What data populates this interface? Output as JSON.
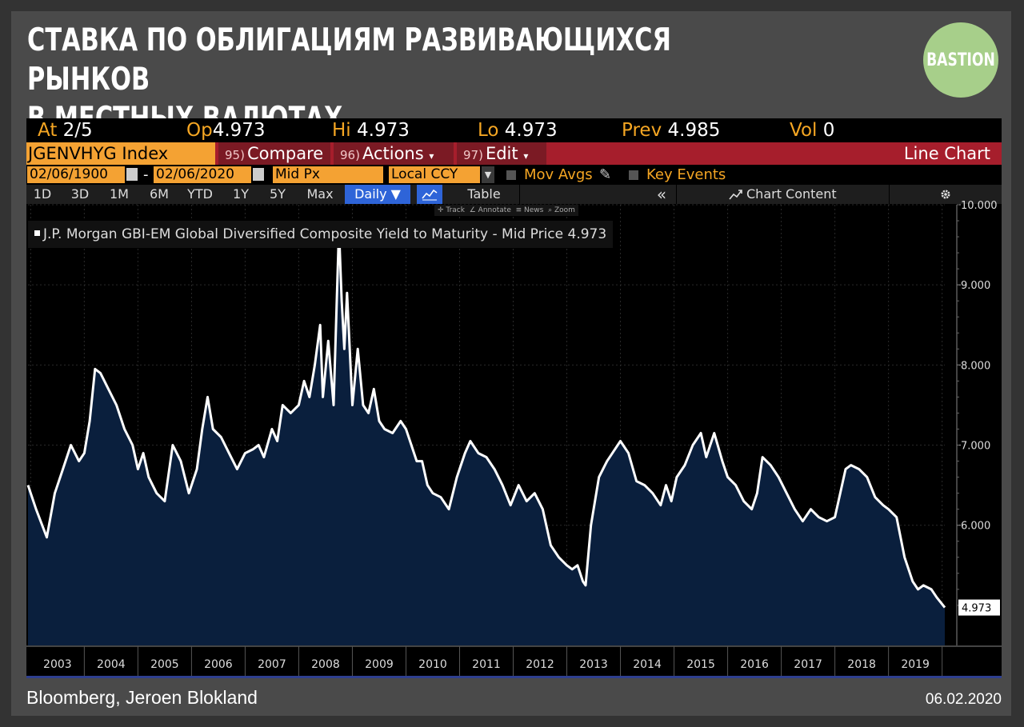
{
  "header": {
    "title_line1": "СТАВКА ПО ОБЛИГАЦИЯМ РАЗВИВАЮЩИХСЯ РЫНКОВ",
    "title_line2": "В МЕСТНЫХ ВАЛЮТАХ",
    "logo_text": "BASTION"
  },
  "quote": {
    "at_label": "At",
    "at_value": "2/5",
    "op_label": "Op",
    "op_value": "4.973",
    "hi_label": "Hi",
    "hi_value": "4.973",
    "lo_label": "Lo",
    "lo_value": "4.973",
    "prev_label": "Prev",
    "prev_value": "4.985",
    "vol_label": "Vol",
    "vol_value": "0"
  },
  "command_bar": {
    "ticker": "JGENVHYG Index",
    "compare_num": "95)",
    "compare_label": "Compare",
    "actions_num": "96)",
    "actions_label": "Actions",
    "edit_num": "97)",
    "edit_label": "Edit",
    "chart_mode": "Line Chart"
  },
  "settings": {
    "start_date": "02/06/1900",
    "end_date": "02/06/2020",
    "dash": "-",
    "price_field": "Mid Px",
    "currency": "Local CCY",
    "mov_avgs": "Mov Avgs",
    "key_events": "Key Events"
  },
  "tabs": {
    "periods": [
      "1D",
      "3D",
      "1M",
      "6M",
      "YTD",
      "1Y",
      "5Y",
      "Max"
    ],
    "frequency": "Daily ▼",
    "table": "Table",
    "collapse": "«",
    "chart_content": "Chart Content"
  },
  "tools": {
    "track": "Track",
    "annotate": "Annotate",
    "news": "News",
    "zoom": "Zoom"
  },
  "footer": {
    "source": "Bloomberg, Jeroen Blokland",
    "date": "06.02.2020"
  },
  "colors": {
    "background": "#333333",
    "panel": "#4a4a4a",
    "terminal": "#000000",
    "amber": "#f5a623",
    "command_red": "#a61e2c",
    "area_fill": "#0a1f3d",
    "line": "#ffffff",
    "logo": "#a7cf8a"
  },
  "chart_data": {
    "type": "area",
    "series": [
      {
        "name": "J.P. Morgan GBI-EM Global Diversified Composite Yield to Maturity - Mid Price",
        "last_value": "4.973",
        "points": [
          [
            2002.95,
            6.5
          ],
          [
            2003.1,
            6.2
          ],
          [
            2003.3,
            5.85
          ],
          [
            2003.45,
            6.4
          ],
          [
            2003.6,
            6.7
          ],
          [
            2003.75,
            7.0
          ],
          [
            2003.9,
            6.8
          ],
          [
            2004.0,
            6.9
          ],
          [
            2004.1,
            7.3
          ],
          [
            2004.2,
            7.95
          ],
          [
            2004.3,
            7.9
          ],
          [
            2004.45,
            7.7
          ],
          [
            2004.6,
            7.5
          ],
          [
            2004.75,
            7.2
          ],
          [
            2004.9,
            7.0
          ],
          [
            2005.0,
            6.7
          ],
          [
            2005.1,
            6.9
          ],
          [
            2005.2,
            6.6
          ],
          [
            2005.35,
            6.4
          ],
          [
            2005.5,
            6.3
          ],
          [
            2005.65,
            7.0
          ],
          [
            2005.8,
            6.8
          ],
          [
            2005.95,
            6.4
          ],
          [
            2006.1,
            6.7
          ],
          [
            2006.2,
            7.2
          ],
          [
            2006.3,
            7.6
          ],
          [
            2006.4,
            7.2
          ],
          [
            2006.55,
            7.1
          ],
          [
            2006.7,
            6.9
          ],
          [
            2006.85,
            6.7
          ],
          [
            2007.0,
            6.9
          ],
          [
            2007.15,
            6.95
          ],
          [
            2007.25,
            7.0
          ],
          [
            2007.35,
            6.85
          ],
          [
            2007.5,
            7.2
          ],
          [
            2007.6,
            7.05
          ],
          [
            2007.7,
            7.5
          ],
          [
            2007.85,
            7.4
          ],
          [
            2008.0,
            7.5
          ],
          [
            2008.1,
            7.8
          ],
          [
            2008.2,
            7.6
          ],
          [
            2008.3,
            8.0
          ],
          [
            2008.4,
            8.5
          ],
          [
            2008.45,
            7.6
          ],
          [
            2008.55,
            8.3
          ],
          [
            2008.65,
            7.5
          ],
          [
            2008.75,
            9.7
          ],
          [
            2008.8,
            8.8
          ],
          [
            2008.85,
            8.2
          ],
          [
            2008.9,
            8.9
          ],
          [
            2009.0,
            7.5
          ],
          [
            2009.1,
            8.2
          ],
          [
            2009.2,
            7.5
          ],
          [
            2009.3,
            7.4
          ],
          [
            2009.4,
            7.7
          ],
          [
            2009.5,
            7.3
          ],
          [
            2009.6,
            7.2
          ],
          [
            2009.75,
            7.15
          ],
          [
            2009.9,
            7.3
          ],
          [
            2010.0,
            7.2
          ],
          [
            2010.1,
            7.0
          ],
          [
            2010.2,
            6.8
          ],
          [
            2010.3,
            6.8
          ],
          [
            2010.4,
            6.5
          ],
          [
            2010.5,
            6.4
          ],
          [
            2010.65,
            6.35
          ],
          [
            2010.8,
            6.2
          ],
          [
            2010.95,
            6.6
          ],
          [
            2011.1,
            6.9
          ],
          [
            2011.2,
            7.05
          ],
          [
            2011.35,
            6.9
          ],
          [
            2011.5,
            6.85
          ],
          [
            2011.65,
            6.7
          ],
          [
            2011.8,
            6.5
          ],
          [
            2011.95,
            6.25
          ],
          [
            2012.1,
            6.5
          ],
          [
            2012.25,
            6.3
          ],
          [
            2012.4,
            6.4
          ],
          [
            2012.55,
            6.2
          ],
          [
            2012.7,
            5.75
          ],
          [
            2012.85,
            5.6
          ],
          [
            2013.0,
            5.5
          ],
          [
            2013.1,
            5.45
          ],
          [
            2013.2,
            5.5
          ],
          [
            2013.3,
            5.3
          ],
          [
            2013.35,
            5.25
          ],
          [
            2013.45,
            6.0
          ],
          [
            2013.6,
            6.6
          ],
          [
            2013.75,
            6.8
          ],
          [
            2013.9,
            6.95
          ],
          [
            2014.0,
            7.05
          ],
          [
            2014.15,
            6.9
          ],
          [
            2014.3,
            6.55
          ],
          [
            2014.45,
            6.5
          ],
          [
            2014.6,
            6.4
          ],
          [
            2014.75,
            6.25
          ],
          [
            2014.85,
            6.5
          ],
          [
            2014.95,
            6.3
          ],
          [
            2015.05,
            6.6
          ],
          [
            2015.2,
            6.75
          ],
          [
            2015.35,
            7.0
          ],
          [
            2015.5,
            7.15
          ],
          [
            2015.6,
            6.85
          ],
          [
            2015.75,
            7.15
          ],
          [
            2015.9,
            6.8
          ],
          [
            2016.0,
            6.6
          ],
          [
            2016.15,
            6.5
          ],
          [
            2016.3,
            6.3
          ],
          [
            2016.45,
            6.2
          ],
          [
            2016.55,
            6.4
          ],
          [
            2016.65,
            6.85
          ],
          [
            2016.8,
            6.75
          ],
          [
            2016.95,
            6.6
          ],
          [
            2017.1,
            6.4
          ],
          [
            2017.25,
            6.2
          ],
          [
            2017.4,
            6.05
          ],
          [
            2017.55,
            6.2
          ],
          [
            2017.7,
            6.1
          ],
          [
            2017.85,
            6.05
          ],
          [
            2018.0,
            6.1
          ],
          [
            2018.1,
            6.4
          ],
          [
            2018.2,
            6.7
          ],
          [
            2018.3,
            6.75
          ],
          [
            2018.45,
            6.7
          ],
          [
            2018.6,
            6.6
          ],
          [
            2018.75,
            6.35
          ],
          [
            2018.9,
            6.25
          ],
          [
            2019.0,
            6.2
          ],
          [
            2019.15,
            6.1
          ],
          [
            2019.3,
            5.6
          ],
          [
            2019.45,
            5.3
          ],
          [
            2019.55,
            5.2
          ],
          [
            2019.65,
            5.25
          ],
          [
            2019.8,
            5.2
          ],
          [
            2019.9,
            5.1
          ],
          [
            2020.05,
            4.973
          ]
        ]
      }
    ],
    "x_ticks": [
      "2003",
      "2004",
      "2005",
      "2006",
      "2007",
      "2008",
      "2009",
      "2010",
      "2011",
      "2012",
      "2013",
      "2014",
      "2015",
      "2016",
      "2017",
      "2018",
      "2019"
    ],
    "y_ticks": [
      "6.000",
      "7.000",
      "8.000",
      "9.000",
      "10.000"
    ],
    "xlim": [
      2002.95,
      2020.05
    ],
    "ylim": [
      4.5,
      10.0
    ],
    "grid": true,
    "legend": "top-left"
  }
}
